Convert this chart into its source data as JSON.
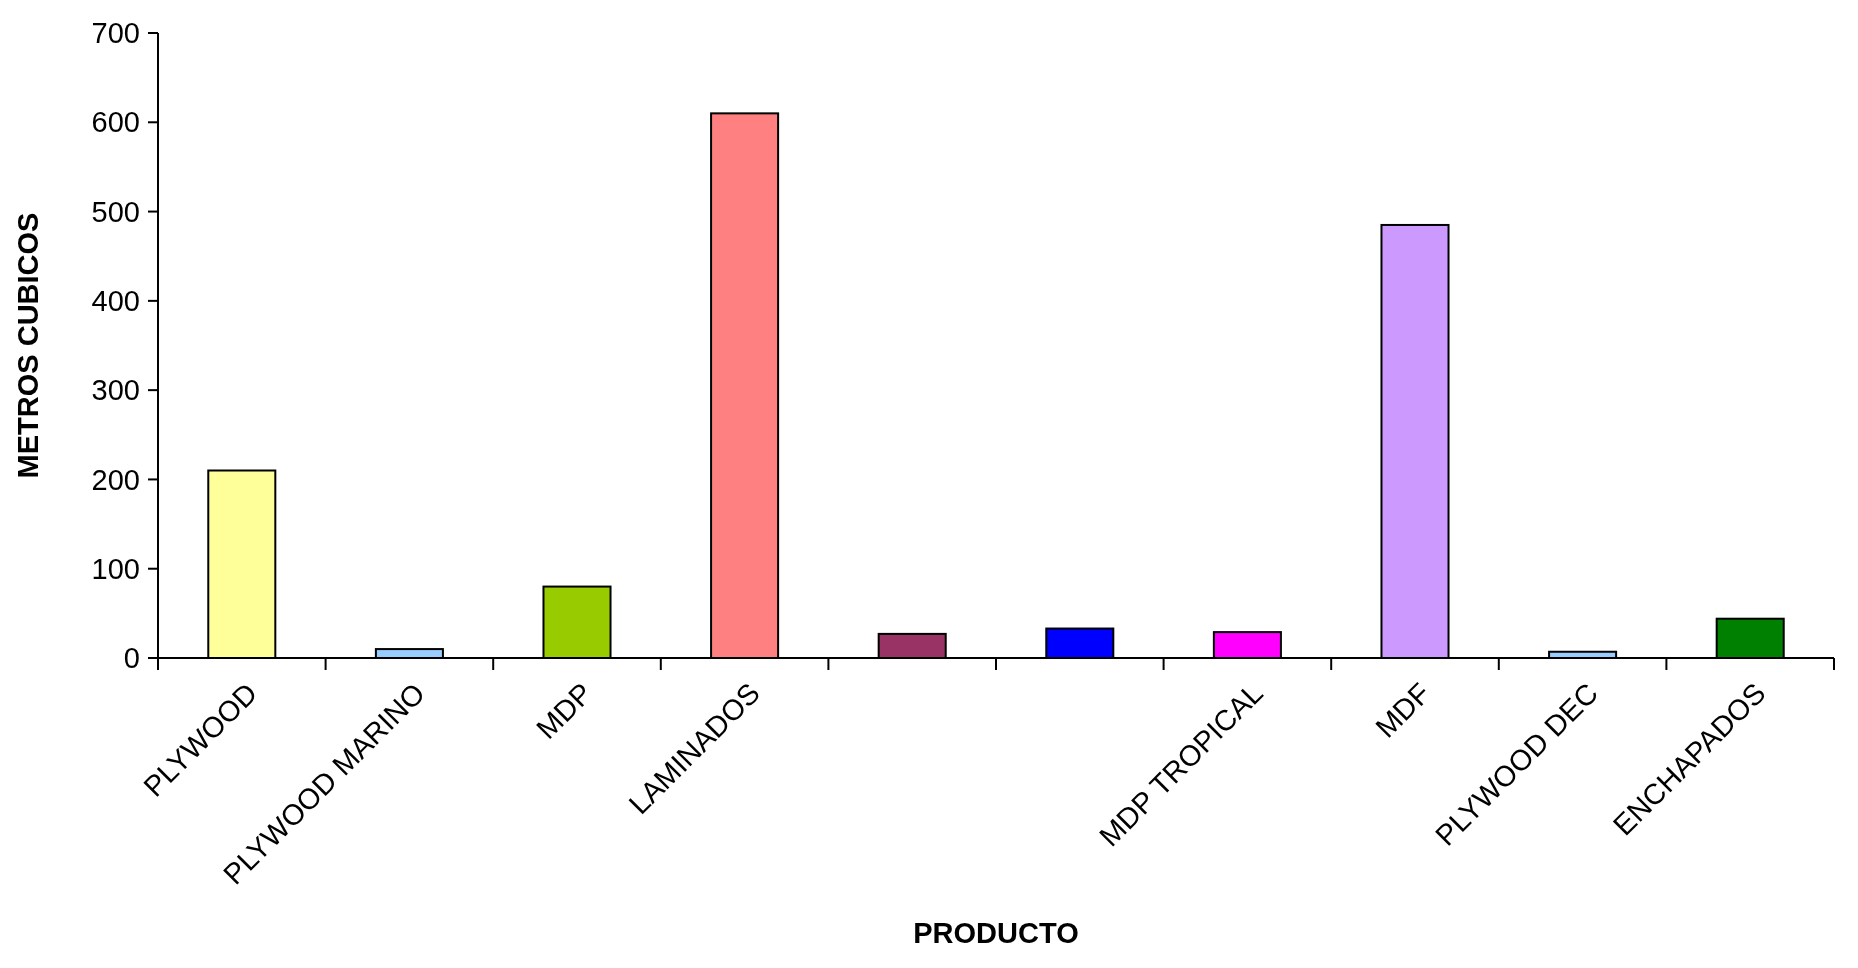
{
  "chart_data": {
    "type": "bar",
    "xlabel": "PRODUCTO",
    "ylabel": "METROS CUBICOS",
    "categories": [
      "PLYWOOD",
      "PLYWOOD MARINO",
      "MDP",
      "LAMINADOS",
      null,
      null,
      "MDP TROPICAL",
      "MDF",
      "PLYWOOD DEC",
      "ENCHAPADOS"
    ],
    "values": [
      210,
      10,
      80,
      610,
      27,
      33,
      29,
      485,
      7,
      44
    ],
    "colors": [
      "#ffff99",
      "#99ccff",
      "#99cc00",
      "#ff8080",
      "#993366",
      "#0000ff",
      "#ff00ff",
      "#cc99ff",
      "#99ccff",
      "#008000"
    ],
    "ylim": [
      0,
      700
    ],
    "yticks": [
      0,
      100,
      200,
      300,
      400,
      500,
      600,
      700
    ]
  }
}
